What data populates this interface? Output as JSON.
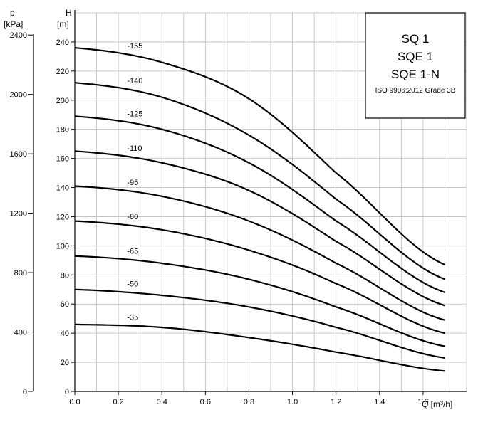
{
  "chart_data": {
    "type": "line",
    "title_box": {
      "lines": [
        "SQ 1",
        "SQE 1",
        "SQE 1-N"
      ],
      "note": "ISO 9906:2012 Grade 3B"
    },
    "xlabel": "Q [m³/h]",
    "ylabel_left_unit": "p",
    "ylabel_left_unit2": "[kPa]",
    "ylabel_right_unit": "H",
    "ylabel_right_unit2": "[m]",
    "xlim": [
      0,
      1.8
    ],
    "ylim": [
      0,
      260
    ],
    "x_ticks": [
      "0.0",
      "0.2",
      "0.4",
      "0.6",
      "0.8",
      "1.0",
      "1.2",
      "1.4",
      "1.6"
    ],
    "h_ticks": [
      "0",
      "20",
      "40",
      "60",
      "80",
      "100",
      "120",
      "140",
      "160",
      "180",
      "200",
      "220",
      "240"
    ],
    "p_ticks": [
      "0",
      "400",
      "800",
      "1200",
      "1600",
      "2000",
      "2400"
    ],
    "grid": true,
    "series": [
      {
        "name": "-155",
        "x": [
          0,
          0.4,
          0.8,
          1.2,
          1.7
        ],
        "y": [
          236,
          226,
          201,
          150,
          87
        ]
      },
      {
        "name": "-140",
        "x": [
          0,
          0.4,
          0.8,
          1.2,
          1.7
        ],
        "y": [
          212,
          202,
          176,
          132,
          77
        ]
      },
      {
        "name": "-125",
        "x": [
          0,
          0.4,
          0.8,
          1.2,
          1.7
        ],
        "y": [
          189,
          180,
          157,
          117,
          68
        ]
      },
      {
        "name": "-110",
        "x": [
          0,
          0.4,
          0.8,
          1.2,
          1.7
        ],
        "y": [
          165,
          157,
          138,
          103,
          59
        ]
      },
      {
        "name": "-95",
        "x": [
          0,
          0.4,
          0.8,
          1.2,
          1.7
        ],
        "y": [
          141,
          134,
          117,
          88,
          49
        ]
      },
      {
        "name": "-80",
        "x": [
          0,
          0.4,
          0.8,
          1.2,
          1.7
        ],
        "y": [
          117,
          111,
          97,
          74,
          40
        ]
      },
      {
        "name": "-65",
        "x": [
          0,
          0.4,
          0.8,
          1.2,
          1.7
        ],
        "y": [
          93,
          88,
          77,
          58,
          31
        ]
      },
      {
        "name": "-50",
        "x": [
          0,
          0.4,
          0.8,
          1.2,
          1.7
        ],
        "y": [
          70,
          66,
          58,
          44,
          23
        ]
      },
      {
        "name": "-35",
        "x": [
          0,
          0.4,
          0.8,
          1.2,
          1.7
        ],
        "y": [
          46,
          44,
          37,
          27,
          14
        ]
      }
    ]
  }
}
